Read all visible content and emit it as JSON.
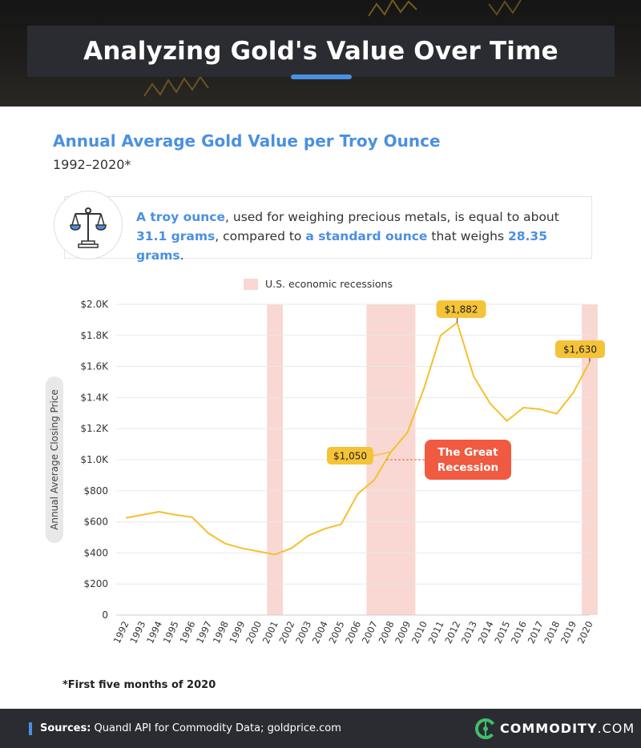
{
  "header": {
    "title": "Analyzing Gold's Value Over Time"
  },
  "chart_header": {
    "title": "Annual Average Gold Value per Troy Ounce",
    "subtitle": "1992–2020*"
  },
  "note": {
    "parts": [
      {
        "text": "A troy ounce",
        "highlight": true
      },
      {
        "text": ", used for weighing precious metals, is equal to about ",
        "highlight": false
      },
      {
        "text": "31.1 grams",
        "highlight": true
      },
      {
        "text": ", compared to ",
        "highlight": false
      },
      {
        "text": "a standard ounce",
        "highlight": true
      },
      {
        "text": " that weighs ",
        "highlight": false
      },
      {
        "text": "28.35 grams",
        "highlight": true
      },
      {
        "text": ".",
        "highlight": false
      }
    ],
    "icon": "scales-icon"
  },
  "chart_data": {
    "type": "line",
    "title": "",
    "ylabel": "Annual Average Closing Price",
    "xlabel": "",
    "ylim": [
      0,
      2000
    ],
    "yticks": [
      0,
      200,
      400,
      600,
      800,
      1000,
      1200,
      1400,
      1600,
      1800,
      2000
    ],
    "ytick_labels": [
      "0",
      "$200",
      "$400",
      "$600",
      "$800",
      "$1.0K",
      "$1.2K",
      "$1.4K",
      "$1.6K",
      "$1.8K",
      "$2.0K"
    ],
    "x": [
      "1992",
      "1993",
      "1994",
      "1995",
      "1996",
      "1997",
      "1998",
      "1999",
      "2000",
      "2001",
      "2002",
      "2003",
      "2004",
      "2005",
      "2006",
      "2007",
      "2008",
      "2009",
      "2010",
      "2011",
      "2012",
      "2013",
      "2014",
      "2015",
      "2016",
      "2017",
      "2018",
      "2019",
      "2020"
    ],
    "series": [
      {
        "name": "",
        "color": "#f4c02e",
        "values": [
          625,
          645,
          665,
          645,
          630,
          525,
          460,
          430,
          410,
          390,
          430,
          510,
          555,
          585,
          780,
          870,
          1050,
          1175,
          1460,
          1800,
          1882,
          1535,
          1360,
          1250,
          1335,
          1325,
          1295,
          1430,
          1630
        ]
      }
    ],
    "recessions": {
      "label": "U.S. economic recessions",
      "color": "#f9d7d2",
      "spans": [
        [
          "2001",
          "2001"
        ],
        [
          "2007",
          "2009"
        ],
        [
          "2020",
          "2020"
        ]
      ]
    },
    "callouts": [
      {
        "x": "2012",
        "value": 1882,
        "label": "$1,882"
      },
      {
        "x": "2020",
        "value": 1630,
        "label": "$1,630"
      },
      {
        "x": "2008",
        "value": 1050,
        "label": "$1,050"
      }
    ],
    "annotation": {
      "lines": [
        "The Great",
        "Recession"
      ],
      "color": "#ef5a40"
    },
    "grid": true,
    "legend": "top-center"
  },
  "footnote": "*First five months of 2020",
  "footer": {
    "sources_label": "Sources:",
    "sources_text": " Quandl API for Commodity Data; goldprice.com",
    "brand_name": "COMMODITY",
    "brand_suffix": ".COM"
  }
}
